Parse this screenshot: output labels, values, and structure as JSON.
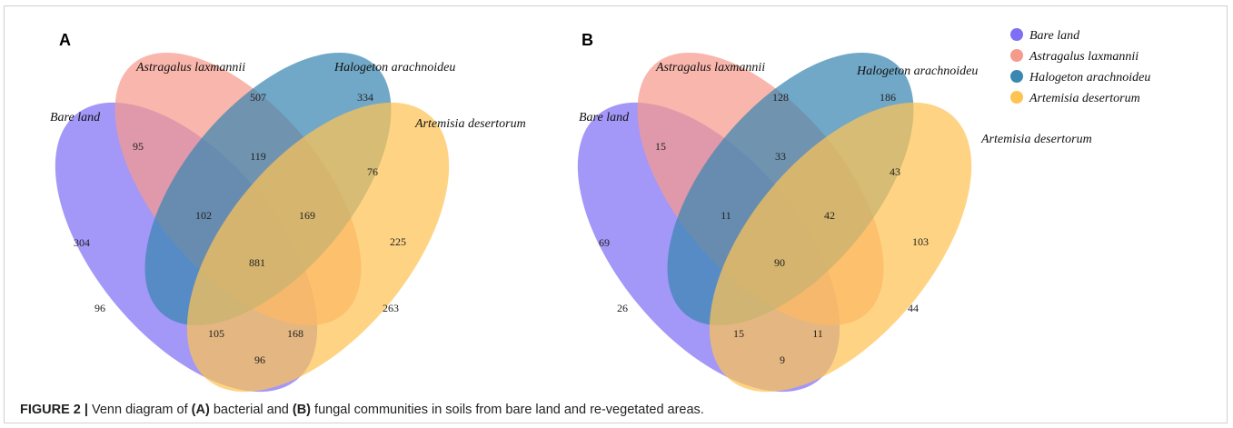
{
  "legend": [
    {
      "label": "Bare land",
      "color": "#7f6ff5"
    },
    {
      "label": "Astragalus laxmannii",
      "color": "#f69a8c"
    },
    {
      "label": "Halogeton arachnoideu",
      "color": "#3a87b2"
    },
    {
      "label": "Artemisia desertorum",
      "color": "#fdc454"
    }
  ],
  "panels": [
    {
      "label": "A",
      "sets": [
        "Bare land",
        "Astragalus laxmannii",
        "Halogeton arachnoideu",
        "Artemisia desertorum"
      ],
      "regions": [
        "507",
        "334",
        "95",
        "119",
        "76",
        "304",
        "102",
        "169",
        "225",
        "881",
        "96",
        "263",
        "105",
        "168",
        "96"
      ]
    },
    {
      "label": "B",
      "sets": [
        "Bare land",
        "Astragalus laxmannii",
        "Halogeton arachnoideu",
        "Artemisia desertorum"
      ],
      "regions": [
        "128",
        "186",
        "15",
        "33",
        "43",
        "69",
        "11",
        "42",
        "103",
        "90",
        "26",
        "44",
        "15",
        "11",
        "9"
      ]
    }
  ],
  "caption": {
    "figure": "FIGURE 2 |",
    "text1": "Venn diagram of",
    "a": "(A)",
    "text2": "bacterial and",
    "b": "(B)",
    "text3": "fungal communities in soils from bare land and re-vegetated areas."
  }
}
